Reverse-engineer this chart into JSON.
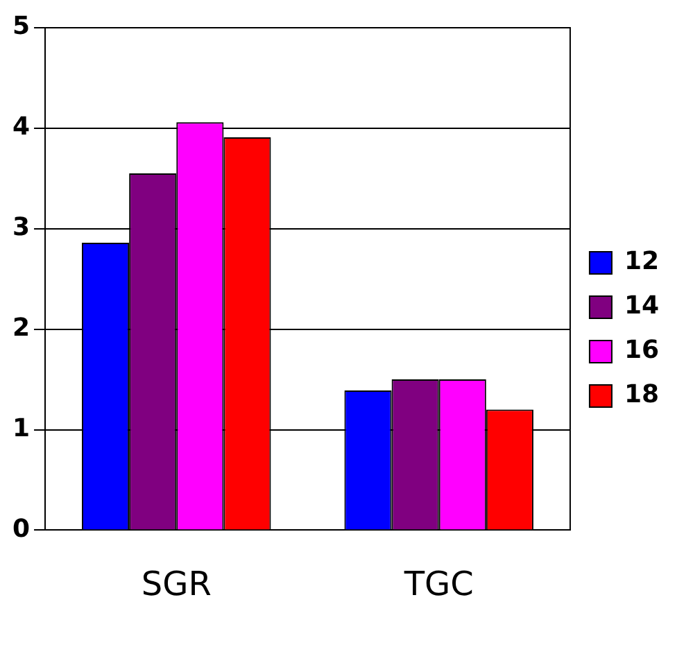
{
  "chart_data": {
    "type": "bar",
    "categories": [
      "SGR",
      "TGC"
    ],
    "series": [
      {
        "name": "12",
        "color": "#0000ff",
        "values": [
          2.86,
          1.39
        ]
      },
      {
        "name": "14",
        "color": "#800080",
        "values": [
          3.55,
          1.5
        ]
      },
      {
        "name": "16",
        "color": "#ff00ff",
        "values": [
          4.06,
          1.5
        ]
      },
      {
        "name": "18",
        "color": "#ff0000",
        "values": [
          3.91,
          1.2
        ]
      }
    ],
    "ylim": [
      0,
      5
    ],
    "yticks": [
      0,
      1,
      2,
      3,
      4,
      5
    ],
    "grid": "y",
    "legend": "right"
  }
}
